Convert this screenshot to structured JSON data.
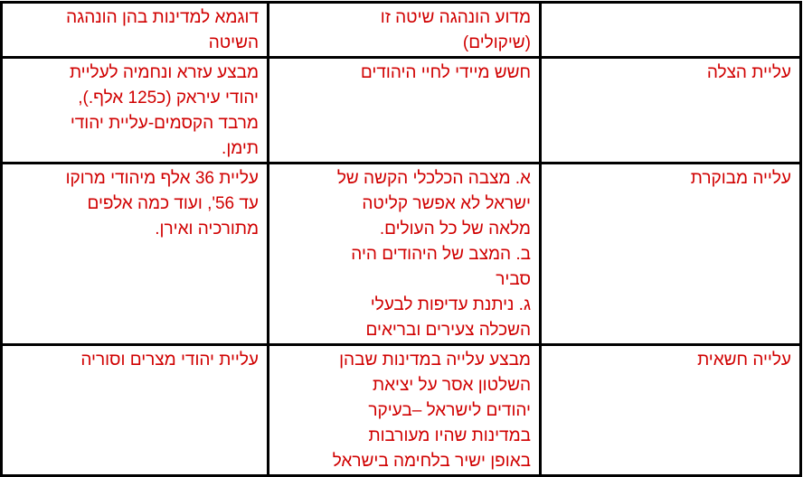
{
  "colors": {
    "text": "#d00000",
    "border": "#000000"
  },
  "header": [
    [],
    [
      "מדוע הונהגה שיטה זו",
      "(שיקולים)"
    ],
    [
      "דוגמא למדינות בהן הונהגה",
      "השיטה"
    ]
  ],
  "rows": [
    {
      "cells": [
        [
          "עליית הצלה"
        ],
        [
          "חשש מיידי לחיי היהודים"
        ],
        [
          "מבצע עזרא ונחמיה לעליית",
          "יהודי עיראק (כ125 אלף.),",
          "מרבד הקסמים-עליית יהודי",
          "תימן."
        ]
      ]
    },
    {
      "cells": [
        [
          "עלייה מבוקרת"
        ],
        [
          "א. מצבה הכלכלי הקשה של",
          "ישראל לא אפשר קליטה",
          "מלאה של כל העולים.",
          "ב. המצב של היהודים היה",
          "סביר",
          "ג. ניתנת עדיפות לבעלי",
          "השכלה צעירים ובריאים"
        ],
        [
          "עליית 36 אלף מיהודי מרוקו",
          "עד 56', ועוד כמה אלפים",
          "מתורכיה ואירן."
        ]
      ]
    },
    {
      "cells": [
        [
          "עלייה חשאית"
        ],
        [
          "מבצע עלייה במדינות שבהן",
          "השלטון אסר על יציאת",
          "יהודים לישראל –בעיקר",
          "במדינות שהיו מעורבות",
          "באופן ישיר בלחימה בישראל"
        ],
        [
          "עליית יהודי מצרים וסוריה"
        ]
      ]
    }
  ]
}
